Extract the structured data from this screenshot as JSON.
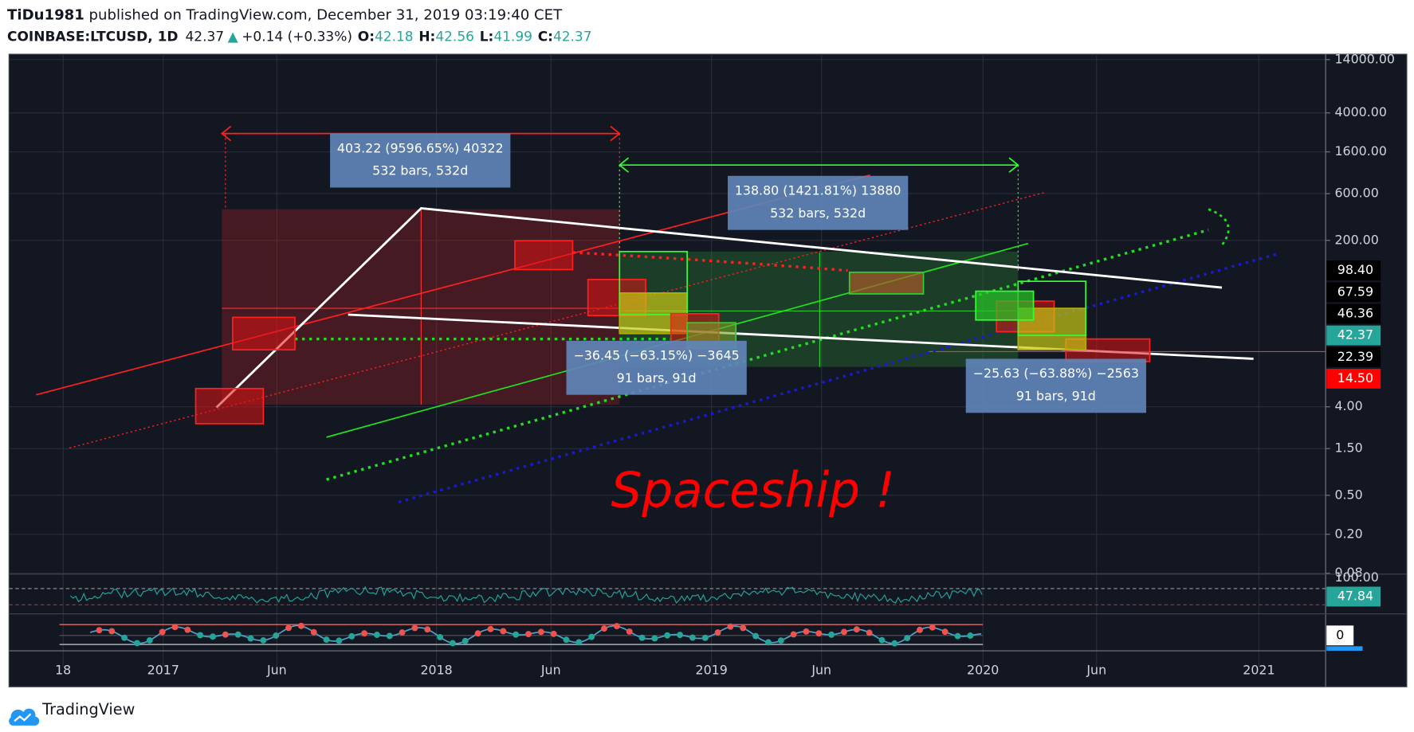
{
  "header": {
    "author": "TiDu1981",
    "published": "published on TradingView.com, December 31, 2019 03:19:40 CET",
    "symbol": "COINBASE:LTCUSD, 1D",
    "last": 42.37,
    "arrow": "▲",
    "change": "+0.14 (+0.33%)",
    "ohlc": [
      {
        "key": "O:",
        "value": 42.18
      },
      {
        "key": "H:",
        "value": 42.56
      },
      {
        "key": "L:",
        "value": 41.99
      },
      {
        "key": "C:",
        "value": 42.37
      }
    ]
  },
  "price_scale": {
    "scale": "log",
    "range": [
      0.08,
      14000
    ],
    "ticks": [
      {
        "value": 14000,
        "label": "14000.00"
      },
      {
        "value": 4000,
        "label": "4000.00"
      },
      {
        "value": 1600,
        "label": "1600.00"
      },
      {
        "value": 600,
        "label": "600.00"
      },
      {
        "value": 200,
        "label": "200.00"
      },
      {
        "value": 4,
        "label": "4.00"
      },
      {
        "value": 1.5,
        "label": "1.50"
      },
      {
        "value": 0.5,
        "label": "0.50"
      },
      {
        "value": 0.2,
        "label": "0.20"
      },
      {
        "value": 0.08,
        "label": "0.08"
      }
    ],
    "markers": [
      {
        "value": 98.4,
        "label": "98.40",
        "color": "#000000"
      },
      {
        "value": 67.59,
        "label": "67.59",
        "color": "#000000"
      },
      {
        "value": 46.36,
        "label": "46.36",
        "color": "#000000"
      },
      {
        "value": 42.37,
        "label": "42.37",
        "color": "#26a69a"
      },
      {
        "value": 22.39,
        "label": "22.39",
        "color": "#000000"
      },
      {
        "value": 14.5,
        "label": "14.50",
        "color": "#ff0000"
      }
    ]
  },
  "time_axis": {
    "labels": [
      "18",
      "2017",
      "Jun",
      "2018",
      "Jun",
      "2019",
      "Jun",
      "2020",
      "Jun",
      "2021"
    ]
  },
  "measures": [
    {
      "line1": "403.22 (9596.65%) 40322",
      "line2": "532 bars, 532d"
    },
    {
      "line1": "138.80 (1421.81%) 13880",
      "line2": "532 bars, 532d"
    },
    {
      "line1": "−36.45 (−63.15%) −3645",
      "line2": "91 bars, 91d"
    },
    {
      "line1": "−25.63 (−63.88%) −2563",
      "line2": "91 bars, 91d"
    }
  ],
  "annotation": "Spaceship !",
  "rsi": {
    "top": {
      "value": 100,
      "label": "100.00"
    },
    "value": 47.84
  },
  "stoch": {
    "value": 0
  },
  "footer": {
    "brand": "TradingView"
  }
}
